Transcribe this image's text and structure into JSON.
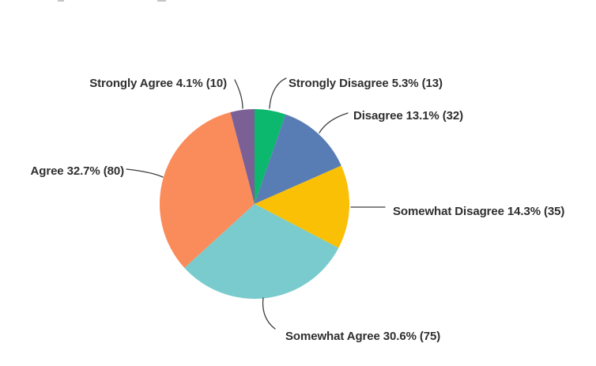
{
  "chart_data": {
    "type": "pie",
    "title": "",
    "start_angle": "top",
    "direction": "clockwise",
    "legend": "none",
    "label_style": "outside-with-leader-lines",
    "slices": [
      {
        "label": "Strongly Disagree",
        "percent": 5.3,
        "count": 13,
        "color": "#0cb86d",
        "display": "Strongly Disagree 5.3% (13)"
      },
      {
        "label": "Disagree",
        "percent": 13.1,
        "count": 32,
        "color": "#587db5",
        "display": "Disagree 13.1% (32)"
      },
      {
        "label": "Somewhat Disagree",
        "percent": 14.3,
        "count": 35,
        "color": "#f9c006",
        "display": "Somewhat Disagree 14.3% (35)"
      },
      {
        "label": "Somewhat Agree",
        "percent": 30.6,
        "count": 75,
        "color": "#79cbcd",
        "display": "Somewhat Agree 30.6% (75)"
      },
      {
        "label": "Agree",
        "percent": 32.7,
        "count": 80,
        "color": "#fa8c5b",
        "display": "Agree 32.7% (80)"
      },
      {
        "label": "Strongly Agree",
        "percent": 4.1,
        "count": 10,
        "color": "#7b6096",
        "display": "Strongly Agree 4.1% (10)"
      }
    ],
    "colors": {
      "label_text": "#2f2f2f",
      "leader_line": "#3d3d3d"
    }
  }
}
